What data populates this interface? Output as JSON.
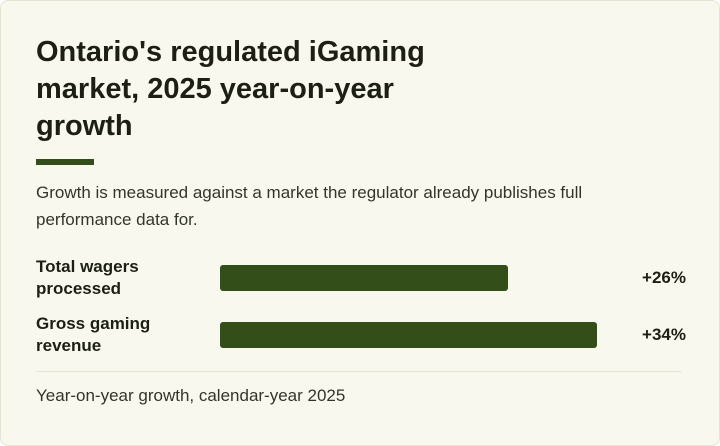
{
  "card": {
    "title": "Ontario's regulated iGaming market, 2025 year-on-year growth",
    "subtitle": "Growth is measured against a market the regulator already publishes full performance data for.",
    "footnote": "Year-on-year growth, calendar-year 2025"
  },
  "colors": {
    "background": "#f9f8ee",
    "accent": "#344e1a",
    "bar": "#344e1a",
    "text": "#1d1f14"
  },
  "chart_data": {
    "type": "bar",
    "orientation": "horizontal",
    "categories": [
      "Total wagers processed",
      "Gross gaming revenue"
    ],
    "values": [
      26,
      34
    ],
    "value_labels": [
      "+26%",
      "+34%"
    ],
    "unit": "%",
    "xlim": [
      0,
      35
    ],
    "grid": false
  }
}
